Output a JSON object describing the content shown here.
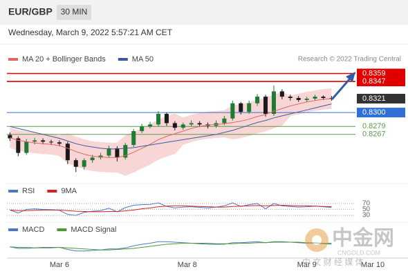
{
  "header": {
    "symbol": "EUR/GBP",
    "interval": "30 MIN",
    "timestamp": "Wednesday, March 9, 2022 5:57:21 AM CET"
  },
  "watermark": {
    "name": "中金网",
    "site": "CNGOLD.COM",
    "tagline": "中 文 财 经 媒 体"
  },
  "chart_data": [
    {
      "type": "candlestick",
      "source": "Research © 2022 Trading Central",
      "xlim": [
        -0.2,
        44.5
      ],
      "xticks": [
        {
          "value": 6,
          "label": "Mar 6"
        },
        {
          "value": 21.5,
          "label": "Mar 8"
        },
        {
          "value": 36,
          "label": "Mar 9"
        },
        {
          "value": 44,
          "label": "Mar 10"
        }
      ],
      "ylim": [
        0.8199,
        0.8371
      ],
      "up_color": "#1e7b34",
      "down_color": "#1a1a1a",
      "open": [
        0.8266,
        0.8261,
        0.8239,
        0.8256,
        0.8258,
        0.8256,
        0.8255,
        0.8253,
        0.8228,
        0.8218,
        0.8228,
        0.8232,
        0.8235,
        0.8246,
        0.8232,
        0.8251,
        0.8272,
        0.8279,
        0.8282,
        0.8298,
        0.8284,
        0.8277,
        0.8282,
        0.8284,
        0.8282,
        0.828,
        0.8284,
        0.8291,
        0.8314,
        0.8301,
        0.8314,
        0.8324,
        0.8298,
        0.8332,
        0.8324,
        0.8322,
        0.8319,
        0.8321,
        0.8324,
        0.8322
      ],
      "high": [
        0.827,
        0.8264,
        0.826,
        0.8262,
        0.8261,
        0.8259,
        0.8258,
        0.8256,
        0.8231,
        0.8231,
        0.8236,
        0.8239,
        0.825,
        0.8249,
        0.8254,
        0.8275,
        0.8283,
        0.8286,
        0.8302,
        0.83,
        0.8287,
        0.8285,
        0.8288,
        0.8287,
        0.8285,
        0.8288,
        0.8295,
        0.8318,
        0.8316,
        0.8318,
        0.8328,
        0.8327,
        0.8341,
        0.8335,
        0.8327,
        0.8325,
        0.8324,
        0.8327,
        0.8326,
        0.8325
      ],
      "low": [
        0.8257,
        0.8234,
        0.8236,
        0.8252,
        0.8252,
        0.8251,
        0.8249,
        0.8222,
        0.821,
        0.8214,
        0.8224,
        0.8229,
        0.8232,
        0.8226,
        0.8229,
        0.8248,
        0.8269,
        0.8276,
        0.8279,
        0.828,
        0.8273,
        0.8274,
        0.8279,
        0.8278,
        0.8276,
        0.8277,
        0.8281,
        0.8288,
        0.8297,
        0.8298,
        0.831,
        0.8294,
        0.8295,
        0.832,
        0.8318,
        0.8316,
        0.8316,
        0.8318,
        0.8319,
        0.8318
      ],
      "close": [
        0.8261,
        0.8239,
        0.8256,
        0.8258,
        0.8256,
        0.8255,
        0.8253,
        0.8228,
        0.8218,
        0.8228,
        0.8232,
        0.8235,
        0.8246,
        0.8232,
        0.8251,
        0.8272,
        0.8279,
        0.8282,
        0.8298,
        0.8284,
        0.8277,
        0.8282,
        0.8284,
        0.8282,
        0.828,
        0.8284,
        0.8291,
        0.8314,
        0.8301,
        0.8314,
        0.8324,
        0.8298,
        0.8332,
        0.8324,
        0.8322,
        0.8319,
        0.8321,
        0.8324,
        0.8322,
        0.8321
      ],
      "series": [
        {
          "name": "MA 20 + Bollinger Bands",
          "color": "#e06666",
          "band_color": "#f9d6d6",
          "values": [
            0.8262,
            0.8258,
            0.8256,
            0.8254,
            0.8253,
            0.8252,
            0.825,
            0.8246,
            0.8241,
            0.8237,
            0.8234,
            0.8233,
            0.8232,
            0.8232,
            0.8235,
            0.824,
            0.8246,
            0.8252,
            0.8259,
            0.8264,
            0.8268,
            0.8272,
            0.8276,
            0.8279,
            0.8281,
            0.8282,
            0.8283,
            0.8285,
            0.8287,
            0.829,
            0.8294,
            0.8297,
            0.8302,
            0.8306,
            0.831,
            0.8313,
            0.8316,
            0.8318,
            0.832,
            0.8321
          ],
          "upper": [
            0.8277,
            0.8273,
            0.8271,
            0.8269,
            0.8268,
            0.8267,
            0.8265,
            0.8268,
            0.8263,
            0.8259,
            0.8256,
            0.8255,
            0.8254,
            0.8254,
            0.8265,
            0.827,
            0.8276,
            0.8282,
            0.8289,
            0.8294,
            0.8298,
            0.8292,
            0.8296,
            0.8299,
            0.8301,
            0.8302,
            0.8303,
            0.831,
            0.8312,
            0.8315,
            0.8319,
            0.8322,
            0.8327,
            0.8331,
            0.8325,
            0.8328,
            0.8331,
            0.8333,
            0.8335,
            0.8336
          ],
          "lower": [
            0.8247,
            0.8243,
            0.8241,
            0.8239,
            0.8238,
            0.8237,
            0.8235,
            0.8224,
            0.8219,
            0.8215,
            0.8212,
            0.8211,
            0.821,
            0.821,
            0.8205,
            0.821,
            0.8216,
            0.8222,
            0.8229,
            0.8234,
            0.8238,
            0.8252,
            0.8256,
            0.8259,
            0.8261,
            0.8262,
            0.8263,
            0.826,
            0.8262,
            0.8265,
            0.8269,
            0.8272,
            0.8277,
            0.8281,
            0.8295,
            0.8298,
            0.8301,
            0.8303,
            0.8305,
            0.8306
          ]
        },
        {
          "name": "MA 50",
          "color": "#3d5a9e",
          "values": [
            0.8279,
            0.8276,
            0.8273,
            0.827,
            0.8267,
            0.8264,
            0.8261,
            0.8257,
            0.8253,
            0.825,
            0.8248,
            0.8246,
            0.8245,
            0.8245,
            0.8246,
            0.8247,
            0.8249,
            0.8251,
            0.8253,
            0.8255,
            0.8257,
            0.8259,
            0.8261,
            0.8263,
            0.8265,
            0.8267,
            0.827,
            0.8273,
            0.8277,
            0.8281,
            0.8285,
            0.8288,
            0.8292,
            0.8295,
            0.8298,
            0.8301,
            0.8304,
            0.8307,
            0.831,
            0.8313
          ]
        }
      ],
      "levels": [
        {
          "value": 0.8359,
          "color": "#e00000",
          "line": true,
          "box": true
        },
        {
          "value": 0.8347,
          "color": "#e00000",
          "line": true,
          "box": true
        },
        {
          "value": 0.8321,
          "color": "#333333",
          "line": false,
          "box": true
        },
        {
          "value": 0.83,
          "label": "0.8300",
          "color": "#2f6fd6",
          "line": true,
          "box": true
        },
        {
          "value": 0.8279,
          "color": "#5a9a4a",
          "line": true,
          "box": false
        },
        {
          "value": 0.8267,
          "color": "#5a9a4a",
          "line": true,
          "box": false
        }
      ]
    },
    {
      "type": "line",
      "ylim": [
        0,
        100
      ],
      "yticks": [
        70,
        50,
        30
      ],
      "grid": true,
      "series": [
        {
          "name": "RSI",
          "color": "#4a78c8",
          "values": [
            48,
            38,
            50,
            52,
            50,
            49,
            47,
            33,
            30,
            40,
            44,
            46,
            54,
            42,
            56,
            64,
            66,
            67,
            72,
            60,
            55,
            58,
            59,
            57,
            55,
            58,
            62,
            72,
            60,
            66,
            70,
            52,
            70,
            62,
            60,
            58,
            59,
            61,
            59,
            57
          ]
        },
        {
          "name": "9MA",
          "color": "#d62020",
          "values": [
            48,
            46,
            46,
            47,
            48,
            48,
            48,
            46,
            44,
            43,
            42,
            42,
            43,
            43,
            45,
            48,
            52,
            55,
            59,
            61,
            62,
            62,
            61,
            60,
            59,
            58,
            58,
            60,
            61,
            62,
            63,
            62,
            63,
            64,
            63,
            62,
            62,
            61,
            60,
            59
          ]
        }
      ]
    },
    {
      "type": "line",
      "ylim": [
        -0.002,
        0.002
      ],
      "series": [
        {
          "name": "MACD",
          "color": "#4a78c8",
          "values": [
            -0.0001,
            -0.0004,
            -0.0004,
            -0.0003,
            -0.0002,
            -0.0002,
            -0.0002,
            -0.0006,
            -0.0009,
            -0.0009,
            -0.0008,
            -0.0007,
            -0.0005,
            -0.0005,
            -0.0003,
            0.0001,
            0.0004,
            0.0006,
            0.0009,
            0.0009,
            0.0008,
            0.0007,
            0.0006,
            0.0005,
            0.0004,
            0.0004,
            0.0004,
            0.0007,
            0.0007,
            0.0008,
            0.0009,
            0.0007,
            0.0009,
            0.0009,
            0.0008,
            0.0007,
            0.0006,
            0.0006,
            0.0005,
            0.0004
          ]
        },
        {
          "name": "MACD Signal",
          "color": "#4d9a2a",
          "values": [
            -0.0001,
            -0.0002,
            -0.0002,
            -0.0003,
            -0.0003,
            -0.0003,
            -0.0002,
            -0.0003,
            -0.0004,
            -0.0005,
            -0.0006,
            -0.0007,
            -0.0007,
            -0.0006,
            -0.0005,
            -0.0004,
            -0.0002,
            0,
            0.0002,
            0.0004,
            0.0005,
            0.0006,
            0.0006,
            0.0006,
            0.0006,
            0.0005,
            0.0005,
            0.0005,
            0.0006,
            0.0006,
            0.0007,
            0.0007,
            0.0008,
            0.0008,
            0.0008,
            0.0008,
            0.0007,
            0.0007,
            0.0006,
            0.0006
          ]
        }
      ]
    }
  ]
}
